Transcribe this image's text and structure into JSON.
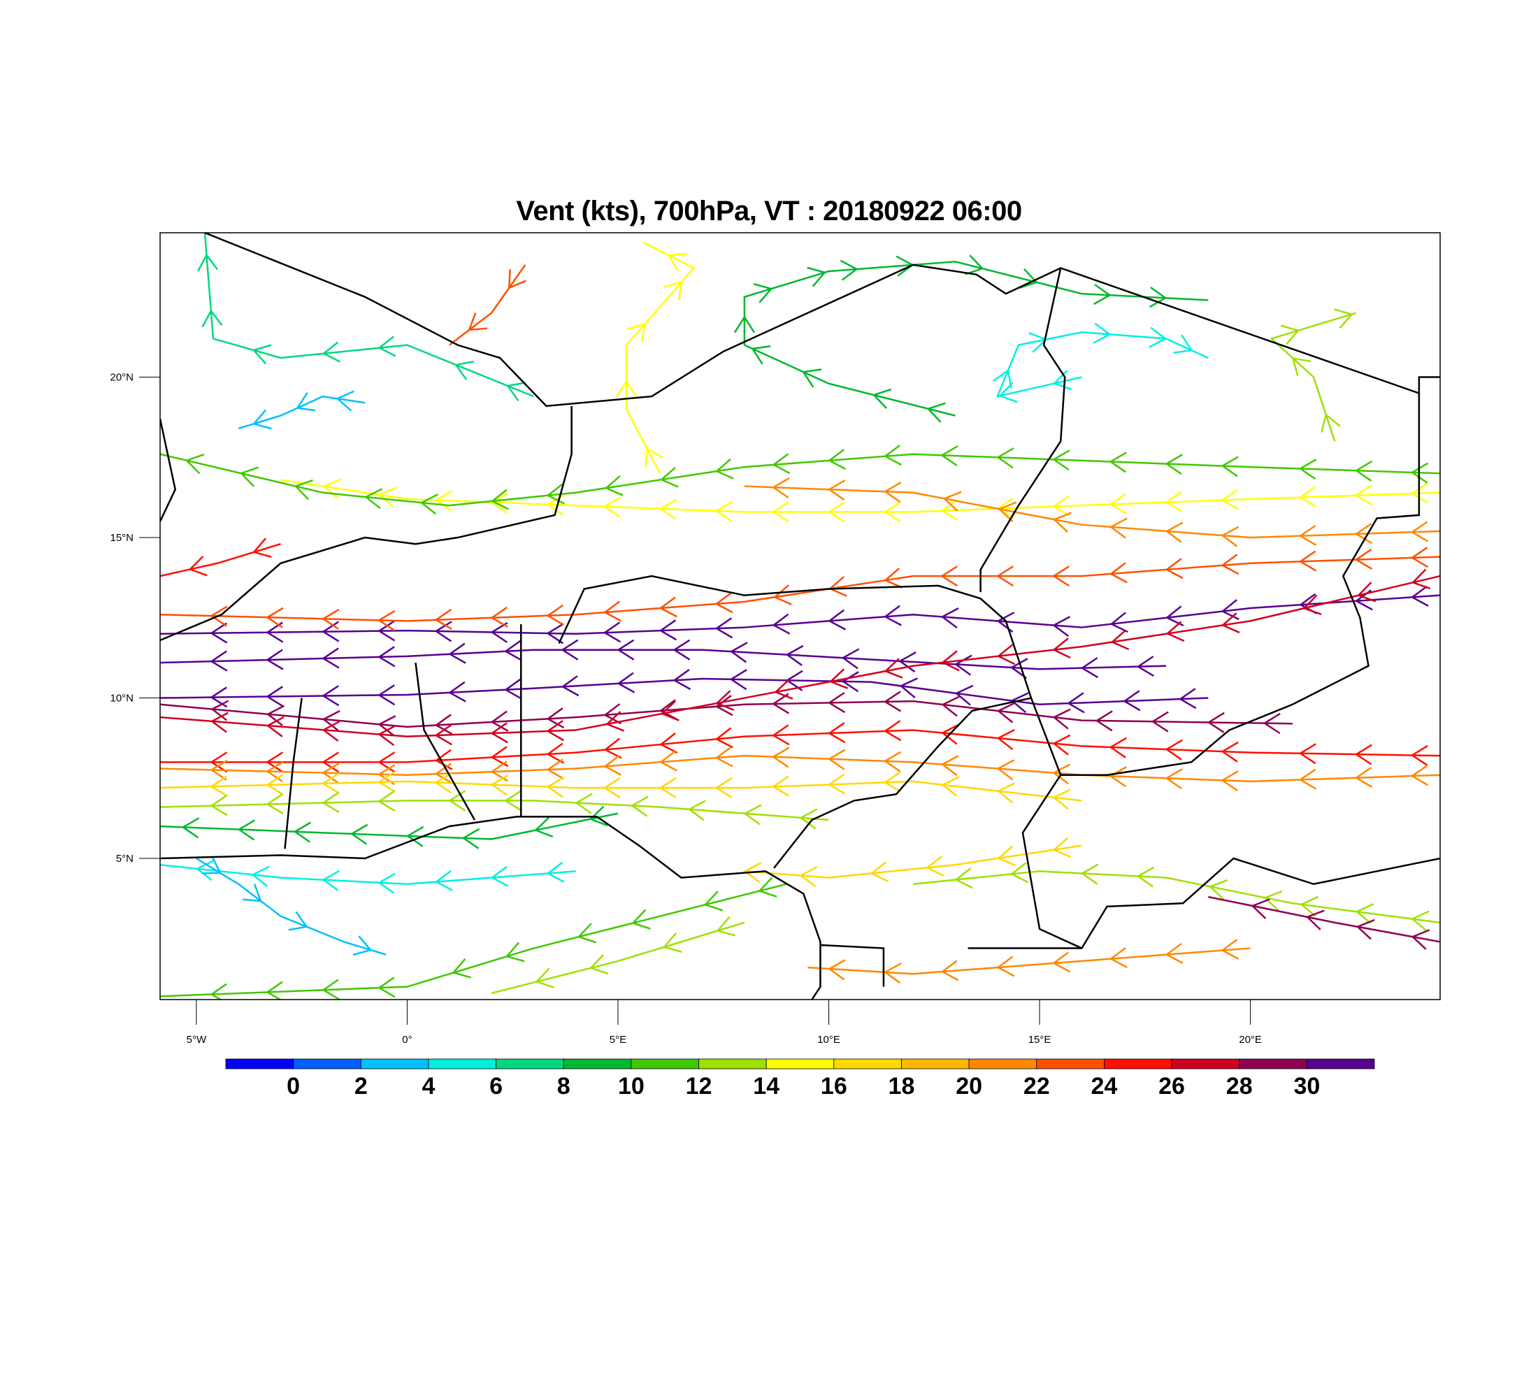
{
  "chart_data": {
    "type": "streamline",
    "title": "Vent (kts), 700hPa, VT : 20180922  06:00",
    "xlim": [
      -5.86,
      24.5
    ],
    "ylim": [
      0.6,
      24.5
    ],
    "x_ticks": [
      -5,
      0,
      5,
      10,
      15,
      20
    ],
    "x_tick_labels": [
      "5°W",
      "0°",
      "5°E",
      "10°E",
      "15°E",
      "20°E"
    ],
    "y_ticks": [
      20,
      15,
      10,
      5
    ],
    "y_tick_labels": [
      "20°N",
      "15°N",
      "10°N",
      "5°N"
    ],
    "colorbar": {
      "levels": [
        0,
        2,
        4,
        6,
        8,
        10,
        12,
        14,
        16,
        18,
        20,
        22,
        24,
        26,
        28,
        30
      ],
      "labels": [
        "0",
        "2",
        "4",
        "6",
        "8",
        "10",
        "12",
        "14",
        "16",
        "18",
        "20",
        "22",
        "24",
        "26",
        "28",
        "30"
      ],
      "colors": [
        "#0000ff",
        "#0060ff",
        "#00c0ff",
        "#00f0e0",
        "#00d880",
        "#00b830",
        "#40c800",
        "#a0e000",
        "#ffff00",
        "#ffd800",
        "#ffb800",
        "#ff8800",
        "#ff5000",
        "#ff1000",
        "#d00020",
        "#900050",
        "#580090"
      ]
    },
    "streamlines": [
      {
        "speed": 31,
        "pts": [
          [
            24.5,
            13.2
          ],
          [
            20,
            12.8
          ],
          [
            16,
            12.2
          ],
          [
            12,
            12.6
          ],
          [
            8,
            12.2
          ],
          [
            4,
            12.0
          ],
          [
            0,
            12.1
          ],
          [
            -5.86,
            12.0
          ]
        ]
      },
      {
        "speed": 30,
        "pts": [
          [
            18,
            11.0
          ],
          [
            15,
            10.9
          ],
          [
            11,
            11.2
          ],
          [
            7,
            11.5
          ],
          [
            3,
            11.5
          ],
          [
            0,
            11.3
          ],
          [
            -5.86,
            11.1
          ]
        ]
      },
      {
        "speed": 31,
        "pts": [
          [
            19,
            10.0
          ],
          [
            15,
            9.8
          ],
          [
            11,
            10.5
          ],
          [
            7,
            10.6
          ],
          [
            3,
            10.3
          ],
          [
            0,
            10.1
          ],
          [
            -5.86,
            10.0
          ]
        ]
      },
      {
        "speed": 29,
        "pts": [
          [
            21,
            9.2
          ],
          [
            16,
            9.3
          ],
          [
            12,
            9.9
          ],
          [
            8,
            9.8
          ],
          [
            4,
            9.4
          ],
          [
            0,
            9.1
          ],
          [
            -5.86,
            9.8
          ]
        ]
      },
      {
        "speed": 27,
        "pts": [
          [
            24.5,
            13.8
          ],
          [
            20,
            12.4
          ],
          [
            16,
            11.6
          ],
          [
            12,
            11.0
          ],
          [
            8,
            10.0
          ],
          [
            4,
            9.0
          ],
          [
            0,
            8.8
          ],
          [
            -5.86,
            9.4
          ]
        ]
      },
      {
        "speed": 25,
        "pts": [
          [
            24.5,
            8.2
          ],
          [
            20,
            8.3
          ],
          [
            16,
            8.5
          ],
          [
            12,
            9.0
          ],
          [
            8,
            8.8
          ],
          [
            4,
            8.3
          ],
          [
            0,
            8.0
          ],
          [
            -5.86,
            8.0
          ]
        ]
      },
      {
        "speed": 23,
        "pts": [
          [
            24.5,
            14.4
          ],
          [
            20,
            14.2
          ],
          [
            16,
            13.8
          ],
          [
            12,
            13.8
          ],
          [
            8,
            13.0
          ],
          [
            4,
            12.6
          ],
          [
            0,
            12.4
          ],
          [
            -5.86,
            12.6
          ]
        ]
      },
      {
        "speed": 21,
        "pts": [
          [
            24.5,
            7.6
          ],
          [
            20,
            7.4
          ],
          [
            16,
            7.6
          ],
          [
            12,
            8.0
          ],
          [
            8,
            8.2
          ],
          [
            4,
            7.8
          ],
          [
            0,
            7.6
          ],
          [
            -5.86,
            7.8
          ]
        ]
      },
      {
        "speed": 17,
        "pts": [
          [
            16,
            6.8
          ],
          [
            12,
            7.4
          ],
          [
            8,
            7.2
          ],
          [
            4,
            7.2
          ],
          [
            0,
            7.4
          ],
          [
            -5.86,
            7.2
          ]
        ]
      },
      {
        "speed": 13,
        "pts": [
          [
            10,
            6.2
          ],
          [
            6,
            6.6
          ],
          [
            3,
            6.8
          ],
          [
            0,
            6.8
          ],
          [
            -5.86,
            6.6
          ]
        ]
      },
      {
        "speed": 9,
        "pts": [
          [
            5,
            6.4
          ],
          [
            2,
            5.6
          ],
          [
            -2,
            5.8
          ],
          [
            -5.86,
            6.0
          ]
        ]
      },
      {
        "speed": 5,
        "pts": [
          [
            4,
            4.6
          ],
          [
            0,
            4.2
          ],
          [
            -3,
            4.4
          ],
          [
            -5.86,
            4.8
          ]
        ]
      },
      {
        "speed": 3,
        "pts": [
          [
            -5,
            5
          ],
          [
            -4,
            4.2
          ],
          [
            -3,
            3.2
          ],
          [
            -1.5,
            2.4
          ],
          [
            -0.5,
            2.0
          ]
        ]
      },
      {
        "speed": 11,
        "pts": [
          [
            9,
            4.2
          ],
          [
            6,
            3.2
          ],
          [
            3,
            2.2
          ],
          [
            0,
            1.0
          ],
          [
            -5.86,
            0.7
          ]
        ]
      },
      {
        "speed": 13,
        "pts": [
          [
            8,
            3.0
          ],
          [
            5,
            1.8
          ],
          [
            2,
            0.8
          ]
        ]
      },
      {
        "speed": 17,
        "pts": [
          [
            16,
            5.4
          ],
          [
            13,
            4.8
          ],
          [
            10,
            4.4
          ],
          [
            8,
            4.6
          ]
        ]
      },
      {
        "speed": 21,
        "pts": [
          [
            20,
            2.2
          ],
          [
            16,
            1.8
          ],
          [
            12,
            1.4
          ],
          [
            9.5,
            1.6
          ]
        ]
      },
      {
        "speed": 13,
        "pts": [
          [
            24.5,
            3.0
          ],
          [
            21,
            3.6
          ],
          [
            18,
            4.4
          ],
          [
            15,
            4.6
          ],
          [
            12,
            4.2
          ]
        ]
      },
      {
        "speed": 29,
        "pts": [
          [
            24.5,
            2.4
          ],
          [
            22,
            3.0
          ],
          [
            19,
            3.8
          ]
        ]
      },
      {
        "speed": 15,
        "pts": [
          [
            24.5,
            16.4
          ],
          [
            20,
            16.2
          ],
          [
            16,
            16.0
          ],
          [
            12,
            15.8
          ],
          [
            8,
            15.8
          ],
          [
            4,
            16.0
          ],
          [
            0,
            16.2
          ],
          [
            -3,
            16.8
          ]
        ]
      },
      {
        "speed": 11,
        "pts": [
          [
            24.5,
            17.0
          ],
          [
            20,
            17.2
          ],
          [
            16,
            17.4
          ],
          [
            12,
            17.6
          ],
          [
            8,
            17.2
          ],
          [
            4,
            16.4
          ],
          [
            1,
            16.0
          ],
          [
            -2,
            16.4
          ],
          [
            -5.86,
            17.6
          ]
        ]
      },
      {
        "speed": 21,
        "pts": [
          [
            24.5,
            15.2
          ],
          [
            20,
            15.0
          ],
          [
            16,
            15.4
          ],
          [
            12,
            16.4
          ],
          [
            8,
            16.6
          ]
        ]
      },
      {
        "speed": 25,
        "pts": [
          [
            -3,
            14.8
          ],
          [
            -4.5,
            14.2
          ],
          [
            -5.86,
            13.8
          ]
        ]
      },
      {
        "speed": 9,
        "pts": [
          [
            13,
            18.8
          ],
          [
            10,
            19.8
          ],
          [
            8,
            21
          ],
          [
            8,
            22.5
          ],
          [
            10,
            23.3
          ],
          [
            13,
            23.6
          ],
          [
            16,
            22.6
          ],
          [
            19,
            22.4
          ]
        ]
      },
      {
        "speed": 5,
        "pts": [
          [
            16,
            20
          ],
          [
            14,
            19.4
          ],
          [
            14.5,
            21
          ],
          [
            16,
            21.4
          ],
          [
            18,
            21.2
          ],
          [
            19,
            20.6
          ]
        ]
      },
      {
        "speed": 7,
        "pts": [
          [
            3,
            19.4
          ],
          [
            0,
            21.0
          ],
          [
            -3,
            20.6
          ],
          [
            -4.6,
            21.2
          ],
          [
            -4.8,
            24.5
          ]
        ]
      },
      {
        "speed": 3,
        "pts": [
          [
            -1,
            19.2
          ],
          [
            -2,
            19.4
          ],
          [
            -3,
            18.8
          ],
          [
            -4.0,
            18.4
          ]
        ]
      },
      {
        "speed": 15,
        "pts": [
          [
            6,
            17
          ],
          [
            5.2,
            19
          ],
          [
            5.2,
            21
          ],
          [
            6.8,
            23.4
          ],
          [
            5.6,
            24.2
          ]
        ]
      },
      {
        "speed": 13,
        "pts": [
          [
            22,
            18
          ],
          [
            21.5,
            20
          ],
          [
            20.5,
            21.2
          ],
          [
            22.5,
            22
          ]
        ]
      },
      {
        "speed": 23,
        "pts": [
          [
            2.8,
            23.5
          ],
          [
            2,
            22
          ],
          [
            1,
            21
          ]
        ]
      }
    ]
  }
}
